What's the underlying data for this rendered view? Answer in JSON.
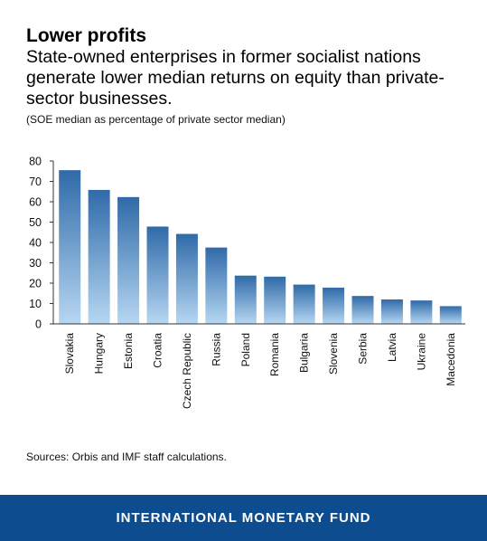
{
  "header": {
    "title": "Lower profits",
    "subtitle": "State-owned enterprises in former socialist nations generate lower median returns on equity than private-sector businesses.",
    "note": "(SOE median as percentage of private sector median)"
  },
  "source": "Sources: Orbis and IMF staff calculations.",
  "footer": {
    "brand": "INTERNATIONAL MONETARY FUND"
  },
  "colors": {
    "bar_top": "#2f6aa8",
    "bar_bottom": "#b7d7f2",
    "footer": "#0d4c8f"
  },
  "chart_data": {
    "type": "bar",
    "categories": [
      "Slovakia",
      "Hungary",
      "Estonia",
      "Croatia",
      "Czech Republic",
      "Russia",
      "Poland",
      "Romania",
      "Bulgaria",
      "Slovenia",
      "Serbia",
      "Latvia",
      "Ukraine",
      "Macedonia"
    ],
    "values": [
      75.5,
      65.8,
      62.3,
      47.8,
      44.2,
      37.5,
      23.7,
      23.2,
      19.3,
      17.8,
      13.7,
      12.0,
      11.5,
      8.7
    ],
    "ylim": [
      0,
      80
    ],
    "yticks": [
      0,
      10,
      20,
      30,
      40,
      50,
      60,
      70,
      80
    ],
    "xlabel": "",
    "ylabel": "",
    "grid": false,
    "legend": "none"
  }
}
